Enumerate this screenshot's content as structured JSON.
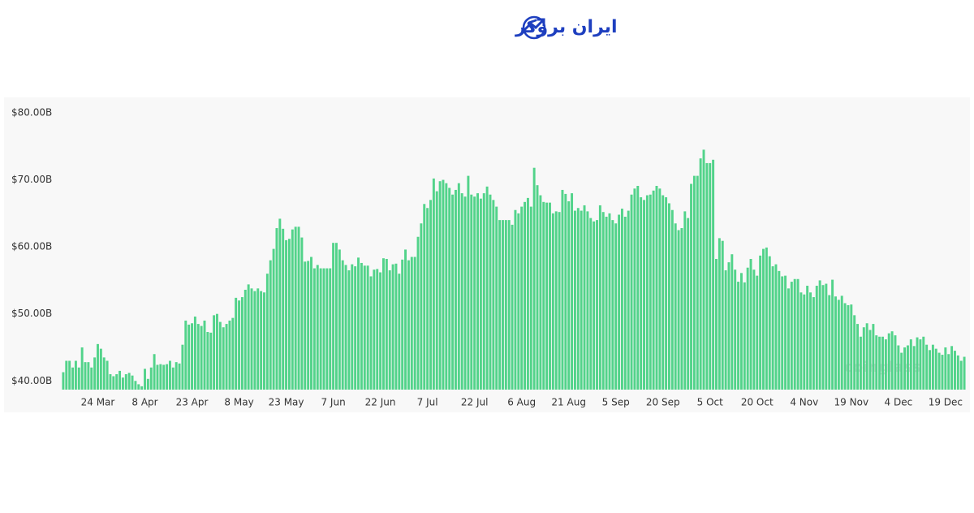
{
  "logo": "ایران بروکر",
  "chart_data": {
    "type": "bar",
    "watermark": "coinglass",
    "color": "#52d38a",
    "ylim": [
      38.7,
      80
    ],
    "yticks": [
      {
        "value": 40,
        "label": "$40.00B"
      },
      {
        "value": 50,
        "label": "$50.00B"
      },
      {
        "value": 60,
        "label": "$60.00B"
      },
      {
        "value": 70,
        "label": "$70.00B"
      },
      {
        "value": 80,
        "label": "$80.00B"
      }
    ],
    "grid": false,
    "categories": [
      null,
      null,
      null,
      null,
      null,
      null,
      null,
      null,
      null,
      null,
      null,
      "24 Mar",
      null,
      null,
      null,
      null,
      null,
      null,
      null,
      null,
      null,
      null,
      null,
      null,
      null,
      null,
      "8 Apr",
      null,
      null,
      null,
      null,
      null,
      null,
      null,
      null,
      null,
      null,
      null,
      null,
      null,
      null,
      "23 Apr",
      null,
      null,
      null,
      null,
      null,
      null,
      null,
      null,
      null,
      null,
      null,
      null,
      null,
      null,
      "8 May",
      null,
      null,
      null,
      null,
      null,
      null,
      null,
      null,
      null,
      null,
      null,
      null,
      null,
      null,
      "23 May",
      null,
      null,
      null,
      null,
      null,
      null,
      null,
      null,
      null,
      null,
      null,
      null,
      null,
      null,
      "7 Jun",
      null,
      null,
      null,
      null,
      null,
      null,
      null,
      null,
      null,
      null,
      null,
      null,
      null,
      null,
      "22 Jun",
      null,
      null,
      null,
      null,
      null,
      null,
      null,
      null,
      null,
      null,
      null,
      null,
      null,
      null,
      "7 Jul",
      null,
      null,
      null,
      null,
      null,
      null,
      null,
      null,
      null,
      null,
      null,
      null,
      null,
      null,
      "22 Jul",
      null,
      null,
      null,
      null,
      null,
      null,
      null,
      null,
      null,
      null,
      null,
      null,
      null,
      null,
      "6 Aug",
      null,
      null,
      null,
      null,
      null,
      null,
      null,
      null,
      null,
      null,
      null,
      null,
      null,
      null,
      "21 Aug",
      null,
      null,
      null,
      null,
      null,
      null,
      null,
      null,
      null,
      null,
      null,
      null,
      null,
      null,
      "5 Sep",
      null,
      null,
      null,
      null,
      null,
      null,
      null,
      null,
      null,
      null,
      null,
      null,
      null,
      null,
      "20 Sep",
      null,
      null,
      null,
      null,
      null,
      null,
      null,
      null,
      null,
      null,
      null,
      null,
      null,
      null,
      "5 Oct",
      null,
      null,
      null,
      null,
      null,
      null,
      null,
      null,
      null,
      null,
      null,
      null,
      null,
      null,
      "20 Oct",
      null,
      null,
      null,
      null,
      null,
      null,
      null,
      null,
      null,
      null,
      null,
      null,
      null,
      null,
      "4 Nov",
      null,
      null,
      null,
      null,
      null,
      null,
      null,
      null,
      null,
      null,
      null,
      null,
      null,
      null,
      "19 Nov",
      null,
      null,
      null,
      null,
      null,
      null,
      null,
      null,
      null,
      null,
      null,
      null,
      null,
      null,
      "4 Dec",
      null,
      null,
      null,
      null,
      null,
      null,
      null,
      null,
      null,
      null,
      null,
      null,
      null,
      null,
      "19 Dec",
      null,
      null,
      null,
      null,
      null,
      null
    ],
    "values": [
      41.3,
      43,
      43,
      42,
      43,
      42,
      45,
      42.8,
      42.8,
      42,
      43.5,
      45.5,
      44.8,
      43.5,
      43,
      41,
      40.7,
      41,
      41.5,
      40.5,
      41,
      41.2,
      40.8,
      40,
      39.5,
      39.2,
      41.8,
      40.3,
      42,
      44,
      42.4,
      42.5,
      42.4,
      42.5,
      43,
      42,
      42.8,
      42.6,
      45.4,
      49,
      48.4,
      48.6,
      49.6,
      48.5,
      48.2,
      49,
      47.3,
      47.2,
      49.8,
      50,
      48.8,
      48,
      48.5,
      49,
      49.4,
      52.4,
      52,
      52.5,
      53.6,
      54.4,
      53.8,
      53.4,
      53.8,
      53.4,
      53.2,
      56,
      58,
      59.7,
      62.8,
      64.2,
      62.7,
      61,
      61.2,
      62.6,
      63,
      63,
      61.4,
      57.8,
      57.9,
      58.5,
      56.8,
      57.3,
      56.8,
      56.8,
      56.8,
      56.8,
      60.6,
      60.6,
      59.6,
      58,
      57.3,
      56.5,
      57.4,
      57.1,
      58.4,
      57.6,
      57.2,
      57.2,
      55.6,
      56.6,
      56.7,
      56.2,
      58.3,
      58.2,
      56.5,
      57.4,
      57.5,
      56,
      58.1,
      59.6,
      58,
      58.5,
      58.5,
      61.5,
      63.5,
      66.4,
      65.8,
      67,
      70.2,
      68.3,
      69.8,
      70,
      69.5,
      68.8,
      67.8,
      68.5,
      69.5,
      68,
      67.5,
      70.6,
      67.8,
      67.5,
      68,
      67.2,
      68,
      69,
      67.8,
      67,
      66,
      64,
      64,
      64,
      64,
      63.3,
      65.5,
      65,
      66,
      66.7,
      67.3,
      66,
      71.8,
      69.2,
      67.7,
      66.7,
      66.6,
      66.6,
      65,
      65.3,
      65.2,
      68.5,
      67.9,
      66.8,
      68,
      65.4,
      65.8,
      65.4,
      66.2,
      65.3,
      64.3,
      63.8,
      64,
      66.2,
      65.2,
      64.5,
      65,
      64,
      63.5,
      64.8,
      65.7,
      64.5,
      65.4,
      67.8,
      68.7,
      69.1,
      67.4,
      67,
      67.7,
      67.8,
      68.4,
      69.1,
      68.7,
      67.7,
      67.4,
      66.5,
      65.5,
      63.5,
      62.5,
      62.8,
      65.3,
      64.3,
      69.4,
      70.6,
      70.6,
      73.2,
      74.5,
      72.5,
      72.5,
      73,
      58.2,
      61.3,
      60.9,
      56.5,
      57.7,
      58.9,
      56.6,
      54.8,
      56.1,
      54.7,
      56.9,
      58.2,
      56.6,
      55.7,
      58.7,
      59.7,
      59.9,
      58.6,
      57.1,
      57.4,
      56.4,
      55.6,
      55.7,
      53.8,
      54.8,
      55.2,
      55.2,
      53.2,
      52.9,
      54.2,
      53.2,
      52.5,
      54.2,
      55,
      54.3,
      54.5,
      52.8,
      55.1,
      52.6,
      52.1,
      52.7,
      51.6,
      51.3,
      51.4,
      49.8,
      48.5,
      46.6,
      48,
      48.6,
      47.6,
      48.5,
      46.8,
      46.6,
      46.6,
      46.2,
      47.1,
      47.4,
      46.8,
      45.3,
      44.2,
      45,
      45.3,
      46.2,
      45.2,
      46.5,
      46.2,
      46.6,
      45.4,
      44.6,
      45.4,
      44.8,
      44.2,
      43.9,
      45,
      44,
      45.2,
      44.5,
      43.8,
      43,
      43.6
    ]
  }
}
